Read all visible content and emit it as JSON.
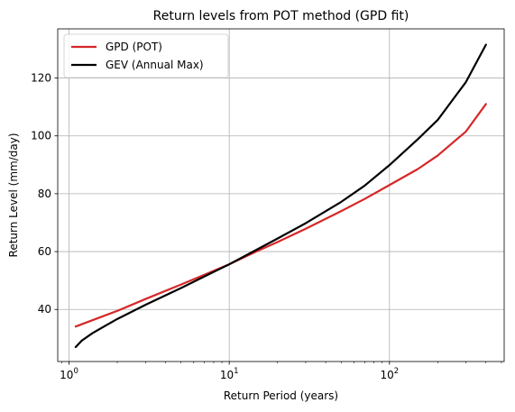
{
  "chart_data": {
    "type": "line",
    "title": "Return levels from POT method (GPD fit)",
    "xlabel": "Return Period (years)",
    "ylabel": "Return Level (mm/day)",
    "xscale": "log",
    "xlim": [
      0.85,
      520
    ],
    "ylim": [
      22,
      137
    ],
    "xticks": [
      {
        "value": 1,
        "base": "10",
        "exp": "0"
      },
      {
        "value": 10,
        "base": "10",
        "exp": "1"
      },
      {
        "value": 100,
        "base": "10",
        "exp": "2"
      }
    ],
    "yticks": [
      40,
      60,
      80,
      100,
      120
    ],
    "grid": true,
    "legend_position": "top-left",
    "series": [
      {
        "name": "GPD (POT)",
        "color": "#d62728",
        "x": [
          1.1,
          1.5,
          2,
          3,
          5,
          7,
          10,
          15,
          20,
          30,
          50,
          70,
          100,
          150,
          200,
          300,
          400
        ],
        "y": [
          34.1,
          36.9,
          39.5,
          43.6,
          48.6,
          52.0,
          55.6,
          60.2,
          63.3,
          67.9,
          74.0,
          78.2,
          83.0,
          88.5,
          93.2,
          101.5,
          111.0
        ]
      },
      {
        "name": "GEV (Annual Max)",
        "color": "#000000",
        "x": [
          1.1,
          1.2,
          1.4,
          1.7,
          2,
          3,
          5,
          7,
          10,
          15,
          20,
          30,
          50,
          70,
          100,
          150,
          200,
          300,
          400
        ],
        "y": [
          27.0,
          29.2,
          31.8,
          34.5,
          36.7,
          41.6,
          47.4,
          51.4,
          55.6,
          60.8,
          64.5,
          69.8,
          77.2,
          82.8,
          89.9,
          98.8,
          105.5,
          118.6,
          131.5
        ]
      }
    ]
  }
}
